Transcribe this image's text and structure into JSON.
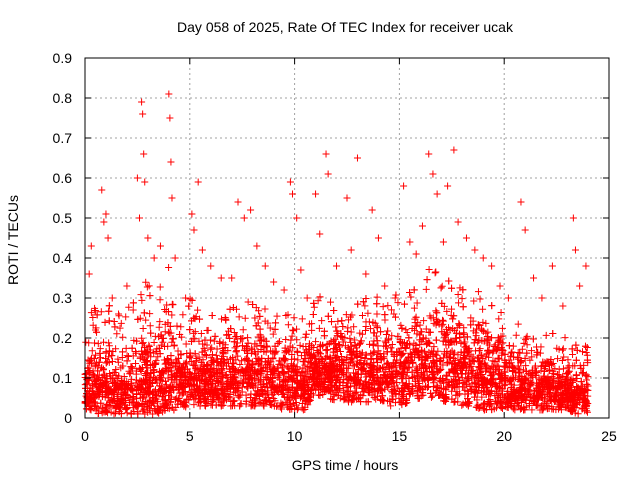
{
  "chart_data": {
    "type": "scatter",
    "title": "Day 058 of 2025, Rate Of TEC Index for receiver ucak",
    "xlabel": "GPS time / hours",
    "ylabel": "ROTI / TECUs",
    "xlim": [
      0,
      25
    ],
    "ylim": [
      0,
      0.9
    ],
    "x_ticks": [
      0,
      5,
      10,
      15,
      20,
      25
    ],
    "y_ticks": [
      0,
      0.1,
      0.2,
      0.3,
      0.4,
      0.5,
      0.6,
      0.7,
      0.8,
      0.9
    ],
    "x_tick_labels": [
      "0",
      "5",
      "10",
      "15",
      "20",
      "25"
    ],
    "y_tick_labels": [
      "0",
      "0.1",
      "0.2",
      "0.3",
      "0.4",
      "0.5",
      "0.6",
      "0.7",
      "0.8",
      "0.9"
    ],
    "grid": true,
    "marker": "+",
    "marker_color": "#ff0000",
    "x_range_of_data": [
      0,
      24
    ],
    "series": [
      {
        "points": [
          [
            0.1,
            0.05
          ],
          [
            0.2,
            0.36
          ],
          [
            0.3,
            0.43
          ],
          [
            0.5,
            0.22
          ],
          [
            0.8,
            0.57
          ],
          [
            0.9,
            0.49
          ],
          [
            1.0,
            0.51
          ],
          [
            1.1,
            0.45
          ],
          [
            1.3,
            0.3
          ],
          [
            1.6,
            0.26
          ],
          [
            2.0,
            0.33
          ],
          [
            2.3,
            0.27
          ],
          [
            2.5,
            0.6
          ],
          [
            2.6,
            0.5
          ],
          [
            2.7,
            0.79
          ],
          [
            2.75,
            0.76
          ],
          [
            2.8,
            0.66
          ],
          [
            2.85,
            0.59
          ],
          [
            3.0,
            0.45
          ],
          [
            3.3,
            0.4
          ],
          [
            3.6,
            0.43
          ],
          [
            4.0,
            0.81
          ],
          [
            4.05,
            0.75
          ],
          [
            4.1,
            0.64
          ],
          [
            4.15,
            0.55
          ],
          [
            4.3,
            0.4
          ],
          [
            4.8,
            0.3
          ],
          [
            5.1,
            0.51
          ],
          [
            5.2,
            0.47
          ],
          [
            5.4,
            0.59
          ],
          [
            5.6,
            0.42
          ],
          [
            6.0,
            0.38
          ],
          [
            6.5,
            0.35
          ],
          [
            7.0,
            0.35
          ],
          [
            7.3,
            0.54
          ],
          [
            7.6,
            0.5
          ],
          [
            7.9,
            0.52
          ],
          [
            8.2,
            0.43
          ],
          [
            8.6,
            0.38
          ],
          [
            9.0,
            0.34
          ],
          [
            9.5,
            0.32
          ],
          [
            9.8,
            0.59
          ],
          [
            9.9,
            0.56
          ],
          [
            10.1,
            0.5
          ],
          [
            10.3,
            0.37
          ],
          [
            10.6,
            0.3
          ],
          [
            11.0,
            0.56
          ],
          [
            11.2,
            0.46
          ],
          [
            11.5,
            0.66
          ],
          [
            11.6,
            0.61
          ],
          [
            12.0,
            0.38
          ],
          [
            12.5,
            0.55
          ],
          [
            12.7,
            0.42
          ],
          [
            13.0,
            0.65
          ],
          [
            13.4,
            0.36
          ],
          [
            13.7,
            0.52
          ],
          [
            14.0,
            0.45
          ],
          [
            14.3,
            0.33
          ],
          [
            14.8,
            0.3
          ],
          [
            15.2,
            0.58
          ],
          [
            15.5,
            0.44
          ],
          [
            15.8,
            0.41
          ],
          [
            16.1,
            0.48
          ],
          [
            16.4,
            0.66
          ],
          [
            16.6,
            0.61
          ],
          [
            16.8,
            0.56
          ],
          [
            17.1,
            0.44
          ],
          [
            17.3,
            0.58
          ],
          [
            17.6,
            0.67
          ],
          [
            17.8,
            0.49
          ],
          [
            18.2,
            0.45
          ],
          [
            18.6,
            0.42
          ],
          [
            19.0,
            0.4
          ],
          [
            19.4,
            0.38
          ],
          [
            19.8,
            0.33
          ],
          [
            20.2,
            0.3
          ],
          [
            20.8,
            0.54
          ],
          [
            21.0,
            0.47
          ],
          [
            21.4,
            0.35
          ],
          [
            21.8,
            0.3
          ],
          [
            22.3,
            0.38
          ],
          [
            22.8,
            0.28
          ],
          [
            23.3,
            0.5
          ],
          [
            23.4,
            0.42
          ],
          [
            23.6,
            0.33
          ],
          [
            23.9,
            0.38
          ],
          [
            24.0,
            0.08
          ]
        ]
      }
    ],
    "bulk_profile": {
      "x": [
        0,
        0.5,
        1,
        1.5,
        2,
        2.5,
        3,
        3.5,
        4,
        4.5,
        5,
        5.5,
        6,
        6.5,
        7,
        7.5,
        8,
        8.5,
        9,
        9.5,
        10,
        10.5,
        11,
        11.5,
        12,
        12.5,
        13,
        13.5,
        14,
        14.5,
        15,
        15.5,
        16,
        16.5,
        17,
        17.5,
        18,
        18.5,
        19,
        19.5,
        20,
        20.5,
        21,
        21.5,
        22,
        22.5,
        23,
        23.5,
        24
      ],
      "y_low": [
        0.02,
        0.01,
        0.01,
        0.01,
        0.01,
        0.01,
        0.01,
        0.01,
        0.02,
        0.02,
        0.03,
        0.03,
        0.03,
        0.03,
        0.03,
        0.03,
        0.03,
        0.03,
        0.03,
        0.02,
        0.02,
        0.02,
        0.06,
        0.05,
        0.04,
        0.04,
        0.04,
        0.04,
        0.04,
        0.03,
        0.03,
        0.04,
        0.05,
        0.05,
        0.04,
        0.04,
        0.03,
        0.03,
        0.02,
        0.02,
        0.02,
        0.02,
        0.02,
        0.02,
        0.02,
        0.02,
        0.02,
        0.01,
        0.01
      ],
      "y_high": [
        0.25,
        0.28,
        0.3,
        0.25,
        0.28,
        0.3,
        0.35,
        0.32,
        0.38,
        0.3,
        0.32,
        0.3,
        0.26,
        0.26,
        0.28,
        0.3,
        0.3,
        0.28,
        0.28,
        0.26,
        0.3,
        0.25,
        0.35,
        0.3,
        0.3,
        0.3,
        0.32,
        0.3,
        0.32,
        0.3,
        0.33,
        0.32,
        0.36,
        0.38,
        0.36,
        0.35,
        0.33,
        0.32,
        0.32,
        0.28,
        0.26,
        0.24,
        0.26,
        0.24,
        0.22,
        0.22,
        0.2,
        0.18,
        0.2
      ],
      "y_core": [
        0.08,
        0.08,
        0.08,
        0.07,
        0.08,
        0.08,
        0.1,
        0.1,
        0.12,
        0.1,
        0.1,
        0.1,
        0.1,
        0.1,
        0.11,
        0.11,
        0.11,
        0.11,
        0.11,
        0.1,
        0.1,
        0.1,
        0.12,
        0.12,
        0.12,
        0.12,
        0.12,
        0.12,
        0.13,
        0.12,
        0.13,
        0.13,
        0.14,
        0.15,
        0.14,
        0.14,
        0.13,
        0.12,
        0.12,
        0.11,
        0.1,
        0.09,
        0.09,
        0.08,
        0.08,
        0.08,
        0.07,
        0.06,
        0.05
      ]
    }
  }
}
